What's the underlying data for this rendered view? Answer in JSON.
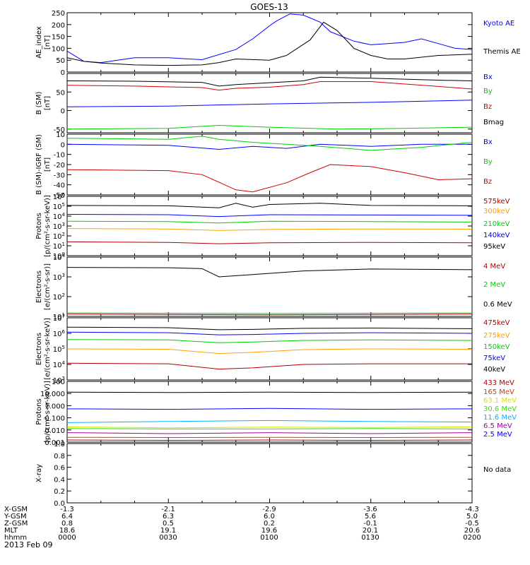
{
  "title": "GOES-13",
  "date_label": "2013 Feb 09",
  "colors": {
    "black": "#000000",
    "blue": "#0000ff",
    "green": "#00d000",
    "red": "#d00000",
    "orange": "#ffa000",
    "darkred": "#b00000",
    "cyan": "#00b0ff",
    "yellow": "#e0e000",
    "purple": "#a000a0",
    "lime": "#30e000"
  },
  "no_data_label": "No data",
  "ephemeris": {
    "rows": [
      {
        "label": "X-GSM",
        "values": [
          "-1.3",
          "-2.1",
          "-2.9",
          "-3.6",
          "-4.3"
        ]
      },
      {
        "label": "Y-GSM",
        "values": [
          "6.4",
          "6.3",
          "6.0",
          "5.6",
          "5.0"
        ]
      },
      {
        "label": "Z-GSM",
        "values": [
          "0.8",
          "0.5",
          "0.2",
          "-0.1",
          "-0.5"
        ]
      },
      {
        "label": "MLT",
        "values": [
          "18.6",
          "19.1",
          "19.6",
          "20.1",
          "20.6"
        ]
      },
      {
        "label": "hhmm",
        "values": [
          "0000",
          "0030",
          "0100",
          "0130",
          "0200"
        ]
      }
    ]
  },
  "chart_data": [
    {
      "type": "line",
      "ylabel": "AE_index\n[nT]",
      "ylim": [
        0,
        250
      ],
      "yticks": [
        0,
        50,
        100,
        150,
        200,
        250
      ],
      "series": [
        {
          "name": "Kyoto AE",
          "color": "#0000ff",
          "x": [
            0,
            5,
            10,
            20,
            30,
            40,
            50,
            55,
            60,
            62,
            66,
            70,
            75,
            78,
            85,
            90,
            95,
            100,
            105,
            110,
            115,
            120
          ],
          "y": [
            88,
            45,
            40,
            60,
            60,
            52,
            95,
            140,
            195,
            215,
            245,
            240,
            210,
            170,
            130,
            115,
            120,
            125,
            140,
            120,
            100,
            95
          ]
        },
        {
          "name": "Themis AE",
          "color": "#000000",
          "x": [
            0,
            5,
            10,
            20,
            30,
            40,
            45,
            50,
            60,
            65,
            72,
            76,
            80,
            85,
            90,
            95,
            100,
            110,
            120
          ],
          "y": [
            60,
            45,
            38,
            30,
            28,
            30,
            40,
            55,
            50,
            70,
            135,
            210,
            175,
            100,
            70,
            55,
            55,
            70,
            75
          ]
        }
      ]
    },
    {
      "type": "line",
      "ylabel": "B (SM)\n[nT]",
      "ylim": [
        -60,
        100
      ],
      "yticks": [
        -50,
        0,
        50
      ],
      "series": [
        {
          "name": "Bx",
          "color": "#0000ff",
          "x": [
            0,
            30,
            45,
            60,
            90,
            120
          ],
          "y": [
            10,
            12,
            15,
            18,
            22,
            28
          ]
        },
        {
          "name": "By",
          "color": "#00d000",
          "x": [
            0,
            30,
            45,
            60,
            80,
            100,
            120
          ],
          "y": [
            -50,
            -48,
            -40,
            -45,
            -50,
            -48,
            -45
          ]
        },
        {
          "name": "Bz",
          "color": "#d00000",
          "x": [
            0,
            20,
            40,
            45,
            50,
            60,
            70,
            75,
            90,
            110,
            120
          ],
          "y": [
            68,
            66,
            62,
            55,
            60,
            63,
            70,
            78,
            78,
            65,
            58
          ]
        },
        {
          "name": "Bmag",
          "color": "#000000",
          "x": [
            0,
            20,
            40,
            45,
            50,
            60,
            70,
            75,
            90,
            110,
            120
          ],
          "y": [
            80,
            79,
            76,
            66,
            70,
            75,
            80,
            90,
            87,
            82,
            80
          ]
        }
      ]
    },
    {
      "type": "line",
      "ylabel": "B (SM)-IGRF (SM)\n[nT]",
      "ylim": [
        -50,
        10
      ],
      "yticks": [
        -50,
        -40,
        -30,
        -20,
        -10,
        0,
        10
      ],
      "series": [
        {
          "name": "Bx",
          "color": "#0000ff",
          "x": [
            0,
            30,
            45,
            55,
            65,
            75,
            90,
            105,
            120
          ],
          "y": [
            0,
            -1,
            -5,
            -2,
            -4,
            0,
            -2,
            0,
            0
          ]
        },
        {
          "name": "By",
          "color": "#00d000",
          "x": [
            0,
            30,
            40,
            45,
            55,
            65,
            75,
            90,
            105,
            120
          ],
          "y": [
            6,
            5,
            8,
            5,
            2,
            0,
            -2,
            -6,
            -3,
            2
          ]
        },
        {
          "name": "Bz",
          "color": "#d00000",
          "x": [
            0,
            30,
            40,
            50,
            55,
            65,
            72,
            78,
            90,
            100,
            110,
            120
          ],
          "y": [
            -25,
            -26,
            -30,
            -45,
            -47,
            -38,
            -28,
            -20,
            -22,
            -28,
            -35,
            -34
          ]
        }
      ]
    },
    {
      "type": "line",
      "log": true,
      "ylabel": "Protons\n[p/(cm²-s-sr-keV)]",
      "ylim": [
        1,
        1000000
      ],
      "yticks": [
        1,
        10,
        100,
        1000,
        10000,
        100000,
        1000000
      ],
      "series": [
        {
          "name": "575keV",
          "color": "#b00000",
          "x": [
            0,
            30,
            45,
            60,
            90,
            120
          ],
          "y": [
            25,
            22,
            16,
            20,
            22,
            20
          ]
        },
        {
          "name": "300keV",
          "color": "#ffa000",
          "x": [
            0,
            30,
            45,
            60,
            90,
            120
          ],
          "y": [
            550,
            500,
            350,
            450,
            500,
            480
          ]
        },
        {
          "name": "210keV",
          "color": "#00d000",
          "x": [
            0,
            30,
            45,
            60,
            90,
            120
          ],
          "y": [
            3000,
            2800,
            2000,
            3000,
            2800,
            2500
          ]
        },
        {
          "name": "140keV",
          "color": "#0000ff",
          "x": [
            0,
            30,
            45,
            60,
            90,
            120
          ],
          "y": [
            15000,
            14000,
            9000,
            14000,
            13000,
            12000
          ]
        },
        {
          "name": "95keV",
          "color": "#000000",
          "x": [
            0,
            30,
            45,
            50,
            55,
            60,
            75,
            90,
            120
          ],
          "y": [
            120000,
            110000,
            70000,
            200000,
            80000,
            150000,
            200000,
            120000,
            110000
          ]
        }
      ]
    },
    {
      "type": "line",
      "log": true,
      "ylabel": "Electrons\n[e/(cm²-s-sr)]",
      "ylim": [
        10,
        10000
      ],
      "yticks": [
        10,
        100,
        1000,
        10000
      ],
      "series": [
        {
          "name": "4 MeV",
          "color": "#b00000",
          "x": [
            0,
            60,
            120
          ],
          "y": [
            13,
            12,
            13
          ]
        },
        {
          "name": "2 MeV",
          "color": "#00d000",
          "x": [
            0,
            60,
            120
          ],
          "y": [
            15,
            14,
            15
          ]
        },
        {
          "name": "0.6 MeV",
          "color": "#000000",
          "x": [
            0,
            30,
            40,
            45,
            55,
            70,
            90,
            120
          ],
          "y": [
            3000,
            2900,
            2600,
            1000,
            1300,
            2000,
            2500,
            2300
          ]
        }
      ]
    },
    {
      "type": "line",
      "log": true,
      "ylabel": "Electrons\n[e/(cm²-s-sr-keV)]",
      "ylim": [
        1000,
        10000000
      ],
      "yticks": [
        1000,
        10000,
        100000,
        1000000,
        10000000
      ],
      "series": [
        {
          "name": "475keV",
          "color": "#b00000",
          "x": [
            0,
            30,
            45,
            55,
            70,
            90,
            120
          ],
          "y": [
            12000,
            11000,
            5000,
            6000,
            10000,
            11000,
            11000
          ]
        },
        {
          "name": "275keV",
          "color": "#ffa000",
          "x": [
            0,
            30,
            45,
            55,
            70,
            90,
            120
          ],
          "y": [
            100000,
            95000,
            50000,
            60000,
            90000,
            100000,
            95000
          ]
        },
        {
          "name": "150keV",
          "color": "#00d000",
          "x": [
            0,
            30,
            45,
            55,
            70,
            90,
            120
          ],
          "y": [
            400000,
            380000,
            250000,
            280000,
            350000,
            380000,
            350000
          ]
        },
        {
          "name": "75keV",
          "color": "#0000ff",
          "x": [
            0,
            30,
            45,
            55,
            70,
            90,
            120
          ],
          "y": [
            1200000,
            1100000,
            800000,
            850000,
            1000000,
            1100000,
            1000000
          ]
        },
        {
          "name": "40keV",
          "color": "#000000",
          "x": [
            0,
            30,
            45,
            55,
            70,
            90,
            120
          ],
          "y": [
            2500000,
            2300000,
            1700000,
            1800000,
            2100000,
            2200000,
            2000000
          ]
        }
      ]
    },
    {
      "type": "line",
      "log": true,
      "ylabel": "Protons\n[p/(cm²-s-sr-keV)]",
      "ylim": [
        0.001,
        100
      ],
      "yticks": [
        0.001,
        0.01,
        0.1,
        1,
        10,
        100
      ],
      "ytick_labels": [
        "0.001",
        "0.010",
        "0.100",
        "1.000",
        "10.000",
        "100"
      ],
      "series": [
        {
          "name": "433 MeV",
          "color": "#b00000",
          "x": [
            0,
            30,
            60,
            90,
            120
          ],
          "y": [
            0.0015,
            0.0014,
            0.0015,
            0.0014,
            0.0015
          ]
        },
        {
          "name": "165 MeV",
          "color": "#d04000",
          "x": [
            0,
            30,
            60,
            90,
            120
          ],
          "y": [
            0.0025,
            0.0024,
            0.0025,
            0.0024,
            0.0025
          ]
        },
        {
          "name": "63.1 MeV",
          "color": "#e0e000",
          "x": [
            0,
            30,
            60,
            90,
            120
          ],
          "y": [
            0.018,
            0.015,
            0.017,
            0.016,
            0.018
          ]
        },
        {
          "name": "30.6 MeV",
          "color": "#30e000",
          "x": [
            0,
            30,
            60,
            90,
            120
          ],
          "y": [
            0.013,
            0.012,
            0.012,
            0.013,
            0.012
          ]
        },
        {
          "name": "11.6 MeV",
          "color": "#00b0ff",
          "x": [
            0,
            30,
            60,
            90,
            120
          ],
          "y": [
            0.04,
            0.05,
            0.06,
            0.05,
            0.045
          ]
        },
        {
          "name": "6.5 MeV",
          "color": "#a000a0",
          "x": [
            0,
            30,
            60,
            90,
            120
          ],
          "y": [
            0.006,
            0.005,
            0.006,
            0.005,
            0.006
          ]
        },
        {
          "name": "2.5 MeV",
          "color": "#0000ff",
          "x": [
            0,
            30,
            60,
            90,
            120
          ],
          "y": [
            0.55,
            0.5,
            0.6,
            0.5,
            0.55
          ]
        },
        {
          "name": "",
          "color": "#000000",
          "x": [
            0,
            30,
            60,
            90,
            120
          ],
          "y": [
            13,
            12,
            13,
            12,
            13
          ]
        }
      ]
    },
    {
      "type": "line",
      "ylabel": "X-ray",
      "ylim": [
        0,
        1
      ],
      "yticks": [
        0,
        0.2,
        0.4,
        0.6,
        0.8,
        1.0
      ],
      "ytick_labels": [
        "0.0",
        "0.2",
        "0.4",
        "0.6",
        "0.8",
        "1.0"
      ],
      "series": []
    }
  ]
}
